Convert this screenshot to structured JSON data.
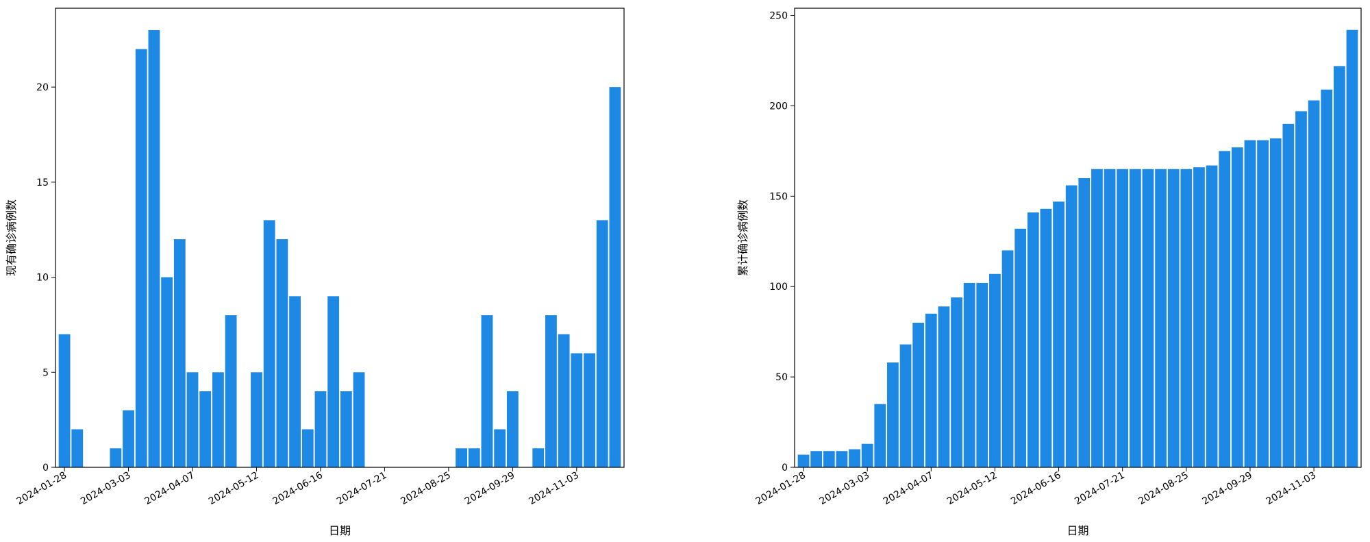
{
  "colors": {
    "bar": "#1e88e5",
    "axis": "#000000",
    "background": "#ffffff"
  },
  "chart_data": [
    {
      "type": "bar",
      "title": "",
      "xlabel": "日期",
      "ylabel": "现有确诊病例数",
      "x_tick_labels": [
        "2024-01-28",
        "2024-03-03",
        "2024-04-07",
        "2024-05-12",
        "2024-06-16",
        "2024-07-21",
        "2024-08-25",
        "2024-09-29",
        "2024-11-03"
      ],
      "x_tick_positions": [
        0,
        5,
        10,
        15,
        20,
        25,
        30,
        35,
        40
      ],
      "ylim": [
        0,
        24.15
      ],
      "yticks": [
        0,
        5,
        10,
        15,
        20
      ],
      "grid": false,
      "legend": "none",
      "categories": [
        "2024-01-28",
        "2024-02-04",
        "2024-02-11",
        "2024-02-18",
        "2024-02-25",
        "2024-03-03",
        "2024-03-10",
        "2024-03-17",
        "2024-03-24",
        "2024-03-31",
        "2024-04-07",
        "2024-04-14",
        "2024-04-21",
        "2024-04-28",
        "2024-05-05",
        "2024-05-12",
        "2024-05-19",
        "2024-05-26",
        "2024-06-02",
        "2024-06-09",
        "2024-06-16",
        "2024-06-23",
        "2024-06-30",
        "2024-07-07",
        "2024-07-14",
        "2024-07-21",
        "2024-07-28",
        "2024-08-04",
        "2024-08-11",
        "2024-08-18",
        "2024-08-25",
        "2024-09-01",
        "2024-09-08",
        "2024-09-15",
        "2024-09-22",
        "2024-09-29",
        "2024-10-06",
        "2024-10-13",
        "2024-10-20",
        "2024-10-27",
        "2024-11-03",
        "2024-11-10",
        "2024-11-17",
        "2024-11-24"
      ],
      "values": [
        7,
        2,
        0,
        0,
        1,
        3,
        22,
        23,
        10,
        12,
        5,
        4,
        5,
        8,
        0,
        5,
        13,
        12,
        9,
        2,
        4,
        9,
        4,
        5,
        0,
        0,
        0,
        0,
        0,
        0,
        0,
        1,
        1,
        8,
        2,
        4,
        0,
        1,
        8,
        7,
        6,
        6,
        13,
        20
      ]
    },
    {
      "type": "bar",
      "title": "",
      "xlabel": "日期",
      "ylabel": "累计确诊病例数",
      "x_tick_labels": [
        "2024-01-28",
        "2024-03-03",
        "2024-04-07",
        "2024-05-12",
        "2024-06-16",
        "2024-07-21",
        "2024-08-25",
        "2024-09-29",
        "2024-11-03"
      ],
      "x_tick_positions": [
        0,
        5,
        10,
        15,
        20,
        25,
        30,
        35,
        40
      ],
      "ylim": [
        0,
        254
      ],
      "yticks": [
        0,
        50,
        100,
        150,
        200,
        250
      ],
      "grid": false,
      "legend": "none",
      "categories": [
        "2024-01-28",
        "2024-02-04",
        "2024-02-11",
        "2024-02-18",
        "2024-02-25",
        "2024-03-03",
        "2024-03-10",
        "2024-03-17",
        "2024-03-24",
        "2024-03-31",
        "2024-04-07",
        "2024-04-14",
        "2024-04-21",
        "2024-04-28",
        "2024-05-05",
        "2024-05-12",
        "2024-05-19",
        "2024-05-26",
        "2024-06-02",
        "2024-06-09",
        "2024-06-16",
        "2024-06-23",
        "2024-06-30",
        "2024-07-07",
        "2024-07-14",
        "2024-07-21",
        "2024-07-28",
        "2024-08-04",
        "2024-08-11",
        "2024-08-18",
        "2024-08-25",
        "2024-09-01",
        "2024-09-08",
        "2024-09-15",
        "2024-09-22",
        "2024-09-29",
        "2024-10-06",
        "2024-10-13",
        "2024-10-20",
        "2024-10-27",
        "2024-11-03",
        "2024-11-10",
        "2024-11-17",
        "2024-11-24"
      ],
      "values": [
        7,
        9,
        9,
        9,
        10,
        13,
        35,
        58,
        68,
        80,
        85,
        89,
        94,
        102,
        102,
        107,
        120,
        132,
        141,
        143,
        147,
        156,
        160,
        165,
        165,
        165,
        165,
        165,
        165,
        165,
        165,
        166,
        167,
        175,
        177,
        181,
        181,
        182,
        190,
        197,
        203,
        209,
        222,
        242
      ]
    }
  ]
}
